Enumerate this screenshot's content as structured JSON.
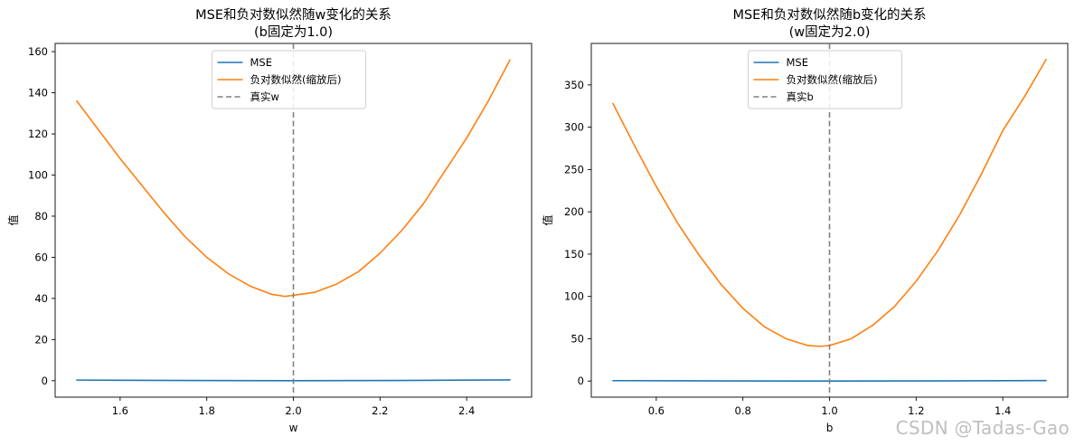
{
  "watermark": "CSDN @Tadas-Gao",
  "chart_data": [
    {
      "type": "line",
      "title": "MSE和负对数似然随w变化的关系",
      "subtitle": "(b固定为1.0)",
      "xlabel": "w",
      "ylabel": "值",
      "xlim": [
        1.45,
        2.55
      ],
      "ylim": [
        -8,
        164
      ],
      "xticks": [
        1.6,
        1.8,
        2.0,
        2.2,
        2.4
      ],
      "yticks": [
        0,
        20,
        40,
        60,
        80,
        100,
        120,
        140,
        160
      ],
      "grid": false,
      "legend_position": "top-center",
      "series": [
        {
          "name": "MSE",
          "color": "#1f77b4",
          "x": [
            1.5,
            1.75,
            2.0,
            2.25,
            2.5
          ],
          "y": [
            0.3,
            0.1,
            0.0,
            0.1,
            0.4
          ]
        },
        {
          "name": "负对数似然(缩放后)",
          "color": "#ff7f0e",
          "x": [
            1.5,
            1.55,
            1.6,
            1.65,
            1.7,
            1.75,
            1.8,
            1.85,
            1.9,
            1.95,
            1.98,
            2.0,
            2.05,
            2.1,
            2.15,
            2.2,
            2.25,
            2.3,
            2.35,
            2.4,
            2.45,
            2.5
          ],
          "y": [
            136,
            122,
            108,
            95,
            82,
            70,
            60,
            52,
            46,
            42,
            41,
            41.5,
            43,
            47,
            53,
            62,
            73,
            86,
            102,
            118,
            136,
            156
          ]
        }
      ],
      "reference_line": {
        "name": "真实w",
        "x": 2.0,
        "color": "#808080",
        "style": "dashed"
      }
    },
    {
      "type": "line",
      "title": "MSE和负对数似然随b变化的关系",
      "subtitle": "(w固定为2.0)",
      "xlabel": "b",
      "ylabel": "值",
      "xlim": [
        0.45,
        1.55
      ],
      "ylim": [
        -19,
        399
      ],
      "xticks": [
        0.6,
        0.8,
        1.0,
        1.2,
        1.4
      ],
      "yticks": [
        0,
        50,
        100,
        150,
        200,
        250,
        300,
        350
      ],
      "grid": false,
      "legend_position": "top-center",
      "series": [
        {
          "name": "MSE",
          "color": "#1f77b4",
          "x": [
            0.5,
            0.75,
            1.0,
            1.25,
            1.5
          ],
          "y": [
            0.5,
            0.2,
            0.0,
            0.2,
            0.6
          ]
        },
        {
          "name": "负对数似然(缩放后)",
          "color": "#ff7f0e",
          "x": [
            0.5,
            0.55,
            0.6,
            0.65,
            0.7,
            0.75,
            0.8,
            0.85,
            0.9,
            0.95,
            0.98,
            1.0,
            1.05,
            1.1,
            1.15,
            1.2,
            1.25,
            1.3,
            1.35,
            1.4,
            1.45,
            1.5
          ],
          "y": [
            328,
            278,
            230,
            186,
            148,
            114,
            86,
            64,
            50,
            42,
            41,
            42,
            50,
            66,
            88,
            118,
            154,
            196,
            244,
            296,
            336,
            380
          ]
        }
      ],
      "reference_line": {
        "name": "真实b",
        "x": 1.0,
        "color": "#808080",
        "style": "dashed"
      }
    }
  ]
}
